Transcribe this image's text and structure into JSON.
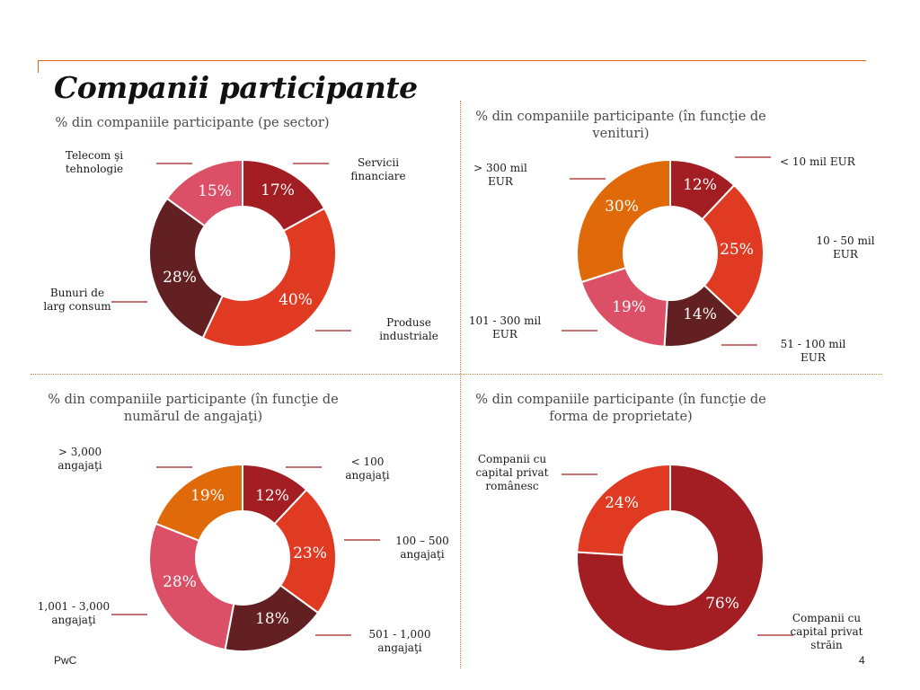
{
  "page": {
    "title": "Companii participante",
    "footer_left": "PwC",
    "page_number": "4"
  },
  "colors": {
    "accent": "#d36a1c",
    "dark_red": "#a31e22",
    "red": "#e03a22",
    "maroon": "#622022",
    "pink": "#db5067",
    "orange": "#e06a0a",
    "label_line": "#a31e22"
  },
  "chart_data": [
    {
      "type": "pie",
      "donut": true,
      "title": "% din companiile participante (pe sector)",
      "categories": [
        "Servicii financiare",
        "Produse industriale",
        "Bunuri de larg consum",
        "Telecom şi tehnologie"
      ],
      "category_lines": [
        [
          "Servicii",
          "financiare"
        ],
        [
          "Produse",
          "industriale"
        ],
        [
          "Bunuri de",
          "larg consum"
        ],
        [
          "Telecom şi",
          "tehnologie"
        ]
      ],
      "values": [
        17,
        40,
        28,
        15
      ],
      "value_labels": [
        "17%",
        "40%",
        "28%",
        "15%"
      ],
      "colors": [
        "#a31e22",
        "#e03a22",
        "#622022",
        "#db5067"
      ]
    },
    {
      "type": "pie",
      "donut": true,
      "title": "% din companiile participante (în funcţie de venituri)",
      "categories": [
        "< 10 mil EUR",
        "10 - 50 mil EUR",
        "51 - 100 mil EUR",
        "101 - 300 mil EUR",
        "> 300 mil EUR"
      ],
      "category_lines": [
        [
          "< 10 mil EUR"
        ],
        [
          "10 - 50 mil",
          "EUR"
        ],
        [
          "51 - 100 mil",
          "EUR"
        ],
        [
          "101 - 300 mil",
          "EUR"
        ],
        [
          "> 300 mil",
          "EUR"
        ]
      ],
      "values": [
        12,
        25,
        14,
        19,
        30
      ],
      "value_labels": [
        "12%",
        "25%",
        "14%",
        "19%",
        "30%"
      ],
      "colors": [
        "#a31e22",
        "#e03a22",
        "#622022",
        "#db5067",
        "#e06a0a"
      ]
    },
    {
      "type": "pie",
      "donut": true,
      "title": "% din companiile participante (în funcţie de numărul de angajaţi)",
      "categories": [
        "< 100 angajaţi",
        "100 – 500 angajaţi",
        "501 - 1,000 angajaţi",
        "1,001 - 3,000 angajaţi",
        "> 3,000 angajaţi"
      ],
      "category_lines": [
        [
          "< 100",
          "angajaţi"
        ],
        [
          "100 – 500",
          "angajaţi"
        ],
        [
          "501 - 1,000",
          "angajaţi"
        ],
        [
          "1,001 - 3,000",
          "angajaţi"
        ],
        [
          "> 3,000",
          "angajaţi"
        ]
      ],
      "values": [
        12,
        23,
        18,
        28,
        19
      ],
      "value_labels": [
        "12%",
        "23%",
        "18%",
        "28%",
        "19%"
      ],
      "colors": [
        "#a31e22",
        "#e03a22",
        "#622022",
        "#db5067",
        "#e06a0a"
      ]
    },
    {
      "type": "pie",
      "donut": true,
      "title": "% din companiile participante (în funcţie de forma de proprietate)",
      "categories": [
        "Companii cu capital privat străin",
        "Companii cu capital privat românesc"
      ],
      "category_lines": [
        [
          "Companii cu",
          "capital privat",
          "străin"
        ],
        [
          "Companii cu",
          "capital privat",
          "românesc"
        ]
      ],
      "values": [
        76,
        24
      ],
      "value_labels": [
        "76%",
        "24%"
      ],
      "colors": [
        "#a31e22",
        "#e03a22"
      ]
    }
  ]
}
